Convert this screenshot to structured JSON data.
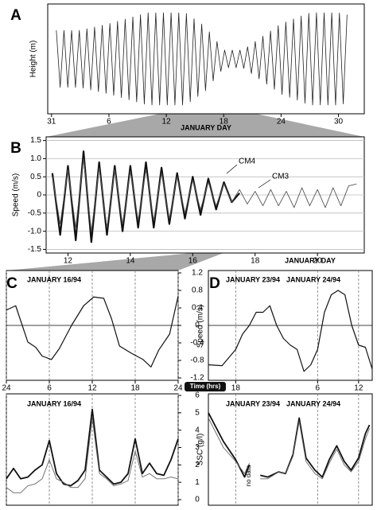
{
  "chart_data": [
    {
      "type": "line",
      "panel": "A",
      "ylabel": "Height (m)",
      "xlabel": "JANUARY DAY",
      "x": [
        0.5,
        0.9,
        1.3,
        1.7,
        2.1,
        2.5,
        2.9,
        3.3,
        3.7,
        4.1,
        4.5,
        4.9,
        5.3,
        5.7,
        6.1,
        6.5,
        6.9,
        7.3,
        7.7,
        8.1,
        8.5,
        8.9,
        9.3,
        9.7,
        10.1,
        10.5,
        10.9,
        11.3,
        11.7,
        12.1,
        12.5,
        12.9,
        13.3,
        13.7,
        14.1,
        14.5,
        14.9,
        15.3,
        15.7,
        16.1,
        16.5,
        16.9,
        17.3,
        17.7,
        18.1,
        18.5,
        18.9,
        19.3,
        19.7,
        20.1,
        20.5,
        20.9,
        21.3,
        21.7,
        22.1,
        22.5,
        22.9,
        23.3,
        23.7,
        24.1,
        24.5,
        24.9,
        25.3,
        25.7,
        26.1,
        26.5,
        26.9,
        27.3,
        27.7,
        28.1,
        28.5,
        28.9,
        29.3,
        29.7,
        30.1,
        30.5,
        30.9
      ],
      "series": [
        {
          "color": "#222222",
          "line_width": 0.8,
          "values": [
            3.8,
            1.2,
            3.8,
            1.2,
            3.8,
            1.2,
            3.8,
            1.17,
            3.87,
            1.09,
            3.95,
            1.01,
            4.03,
            0.93,
            4.11,
            0.84,
            4.21,
            0.74,
            4.31,
            0.64,
            4.41,
            0.54,
            4.51,
            0.44,
            4.6,
            0.4,
            4.6,
            0.4,
            4.6,
            0.4,
            4.6,
            0.4,
            4.6,
            0.4,
            4.57,
            0.55,
            4.33,
            0.79,
            4.09,
            1.05,
            3.73,
            1.5,
            3.29,
            1.93,
            2.9,
            2.1,
            2.9,
            2.1,
            2.9,
            2.07,
            3.05,
            1.83,
            3.29,
            1.59,
            3.53,
            1.35,
            3.77,
            1.11,
            4.01,
            0.88,
            4.18,
            0.75,
            4.32,
            0.62,
            4.45,
            0.48,
            4.58,
            0.4,
            4.6,
            0.4,
            4.6,
            0.4,
            4.6,
            0.4,
            4.59,
            0.45,
            4.51
          ]
        }
      ],
      "xlim": [
        -0.4,
        32.7
      ],
      "xticks": [
        {
          "value": 0,
          "label": "31"
        },
        6,
        12,
        18,
        24,
        30
      ],
      "ylim": [
        0,
        5
      ]
    },
    {
      "type": "line",
      "panel": "B",
      "ylabel": "Speed (m/s)",
      "xlabel": "JANUARY DAY",
      "grid": true,
      "x": [
        11.5,
        11.75,
        12,
        12.25,
        12.5,
        12.75,
        13,
        13.25,
        13.5,
        13.75,
        14,
        14.25,
        14.5,
        14.75,
        15,
        15.25,
        15.5,
        15.75,
        16,
        16.25,
        16.5,
        16.75,
        17,
        17.25,
        17.5,
        17.75,
        18,
        18.25,
        18.5,
        18.75,
        19,
        19.25,
        19.5,
        19.75,
        20,
        20.25,
        20.5,
        20.75,
        21,
        21.25
      ],
      "series": [
        {
          "name": "CM4",
          "color": "#111111",
          "line_width": 2.2,
          "values": [
            0.6,
            -1.1,
            0.8,
            -1.25,
            1.2,
            -1.3,
            0.9,
            -1.1,
            0.8,
            -1.0,
            0.8,
            -0.9,
            0.9,
            -0.9,
            0.75,
            -0.8,
            0.6,
            -0.65,
            0.5,
            -0.55,
            0.45,
            -0.4,
            0.35,
            -0.2,
            0.05,
            null,
            null,
            null,
            null,
            null,
            null,
            null,
            null,
            null,
            null,
            null,
            null,
            null,
            null,
            null
          ]
        },
        {
          "name": "CM3",
          "color": "#555555",
          "line_width": 0.9,
          "values": [
            0.5,
            -0.8,
            0.7,
            -0.9,
            1.0,
            -1.0,
            0.75,
            -0.9,
            0.7,
            -0.8,
            0.65,
            -0.7,
            0.7,
            -0.7,
            0.6,
            -0.65,
            0.5,
            -0.5,
            0.4,
            -0.4,
            0.35,
            -0.3,
            0.3,
            -0.2,
            0.15,
            -0.25,
            0.1,
            -0.3,
            0.15,
            -0.3,
            0.1,
            -0.35,
            0.2,
            -0.3,
            0.15,
            -0.35,
            0.2,
            -0.3,
            0.25,
            0.3
          ]
        }
      ],
      "xlim": [
        11.3,
        21.5
      ],
      "xticks": [
        12,
        14,
        16,
        18,
        20
      ],
      "ylim": [
        -1.6,
        1.6
      ],
      "yticks": [
        1.5,
        {
          "value": 1,
          "label": "1.0"
        },
        0.5,
        0,
        -0.5,
        {
          "value": -1,
          "label": "-1.0"
        },
        -1.5
      ]
    },
    {
      "type": "line",
      "panel": "C",
      "title": "JANUARY 16/94",
      "xlabel": "Time (hrs)",
      "xgrid": true,
      "zero_line": true,
      "x": [
        0,
        1.3,
        3,
        4.1,
        5,
        6.3,
        7.4,
        9.1,
        10.8,
        12.2,
        13.6,
        14.7,
        15.8,
        17.4,
        19.1,
        20.2,
        21.3,
        22.8,
        24
      ],
      "series": [
        {
          "color": "#111111",
          "line_width": 1.2,
          "values": [
            0.35,
            0.45,
            -0.38,
            -0.5,
            -0.7,
            -0.78,
            -0.53,
            0,
            0.45,
            0.65,
            0.62,
            0.15,
            -0.47,
            -0.63,
            -0.78,
            -0.95,
            -0.56,
            -0.2,
            0.67
          ]
        }
      ],
      "xlim": [
        0,
        24
      ],
      "xticks": [
        {
          "value": 0,
          "label": "24"
        },
        6,
        12,
        18,
        24
      ],
      "ylim": [
        -1.2,
        1.2
      ],
      "yticks": [
        1.2,
        0.8,
        0.4,
        0,
        -0.4,
        -0.8,
        -1.2
      ]
    },
    {
      "type": "line",
      "title": "JANUARY 16/94",
      "xgrid": true,
      "x": [
        0,
        1,
        2,
        3,
        4,
        5,
        6,
        7,
        8,
        9,
        10,
        11,
        12,
        13,
        14,
        15,
        16,
        17,
        18,
        19,
        20,
        21,
        22,
        23,
        24
      ],
      "series": [
        {
          "color": "#111111",
          "line_width": 1.8,
          "values": [
            1.2,
            1.8,
            1.2,
            1.3,
            1.7,
            2.0,
            3.4,
            1.5,
            0.9,
            0.8,
            1.1,
            1.7,
            5.2,
            1.7,
            1.3,
            0.9,
            1.0,
            1.5,
            3.5,
            1.5,
            2.1,
            1.5,
            1.4,
            2.3,
            3.5
          ]
        },
        {
          "color": "#666666",
          "line_width": 0.9,
          "values": [
            0.7,
            0.4,
            0.4,
            0.8,
            0.9,
            1.2,
            2.3,
            1.2,
            1.0,
            0.7,
            0.7,
            1.2,
            4.7,
            1.5,
            1.2,
            0.8,
            0.9,
            1.1,
            2.8,
            1.3,
            1.5,
            1.2,
            1.2,
            1.3,
            1.2
          ]
        }
      ],
      "xlim": [
        0,
        24
      ],
      "ylim": [
        0,
        6
      ],
      "yticks": [
        6,
        5,
        4,
        3,
        2,
        1,
        0
      ]
    },
    {
      "type": "line",
      "panel": "D",
      "titles": [
        "JANUARY 23/94",
        "JANUARY 24/94"
      ],
      "ylabel": "Speed (m/s)",
      "xgrid": true,
      "zero_line": true,
      "x": [
        14,
        16,
        18,
        19,
        20,
        21,
        22,
        23,
        24,
        25,
        26,
        27,
        28,
        29,
        30,
        31,
        32,
        33,
        34,
        35,
        36,
        37,
        38
      ],
      "series": [
        {
          "color": "#111111",
          "line_width": 1.2,
          "values": [
            -0.9,
            -0.92,
            -0.55,
            -0.2,
            0,
            0.3,
            0.3,
            0.45,
            0,
            -0.3,
            -0.45,
            -0.55,
            -1.05,
            -0.9,
            -0.55,
            0.3,
            0.7,
            0.8,
            0.7,
            0,
            -0.45,
            -0.5,
            -1.0
          ]
        }
      ],
      "xlim": [
        14,
        38
      ],
      "xticks": [
        18,
        {
          "value": 30,
          "label": "6"
        },
        {
          "value": 36,
          "label": "12"
        }
      ],
      "ylim": [
        -1.2,
        1.2
      ]
    },
    {
      "type": "line",
      "titles": [
        "JANUARY 23/94",
        "JANUARY 24/94"
      ],
      "ylabel": "SSC (g/l)",
      "annotation": "no data",
      "xgrid": true,
      "x": [
        14,
        16.2,
        18,
        19.3,
        20,
        20.8,
        21.6,
        22.7,
        24.3,
        25.3,
        26.4,
        27.3,
        28.3,
        29.6,
        30.7,
        31.7,
        32.8,
        33.9,
        34.9,
        36,
        37,
        37.6
      ],
      "series": [
        {
          "color": "#111111",
          "line_width": 1.8,
          "values": [
            5.0,
            3.35,
            2.3,
            1.3,
            2.0,
            null,
            1.4,
            1.3,
            1.6,
            1.5,
            2.6,
            4.7,
            2.4,
            1.7,
            1.3,
            2.3,
            3.1,
            2.2,
            1.7,
            2.4,
            3.8,
            4.3
          ]
        },
        {
          "color": "#666666",
          "line_width": 0.9,
          "values": [
            4.7,
            3.0,
            2.2,
            1.5,
            2.1,
            null,
            1.2,
            1.2,
            1.6,
            1.5,
            2.5,
            4.5,
            2.2,
            1.5,
            1.2,
            2.1,
            2.9,
            2.0,
            1.6,
            2.2,
            3.5,
            4.1
          ]
        }
      ],
      "xlim": [
        14,
        38
      ],
      "ylim": [
        0,
        6
      ]
    }
  ]
}
